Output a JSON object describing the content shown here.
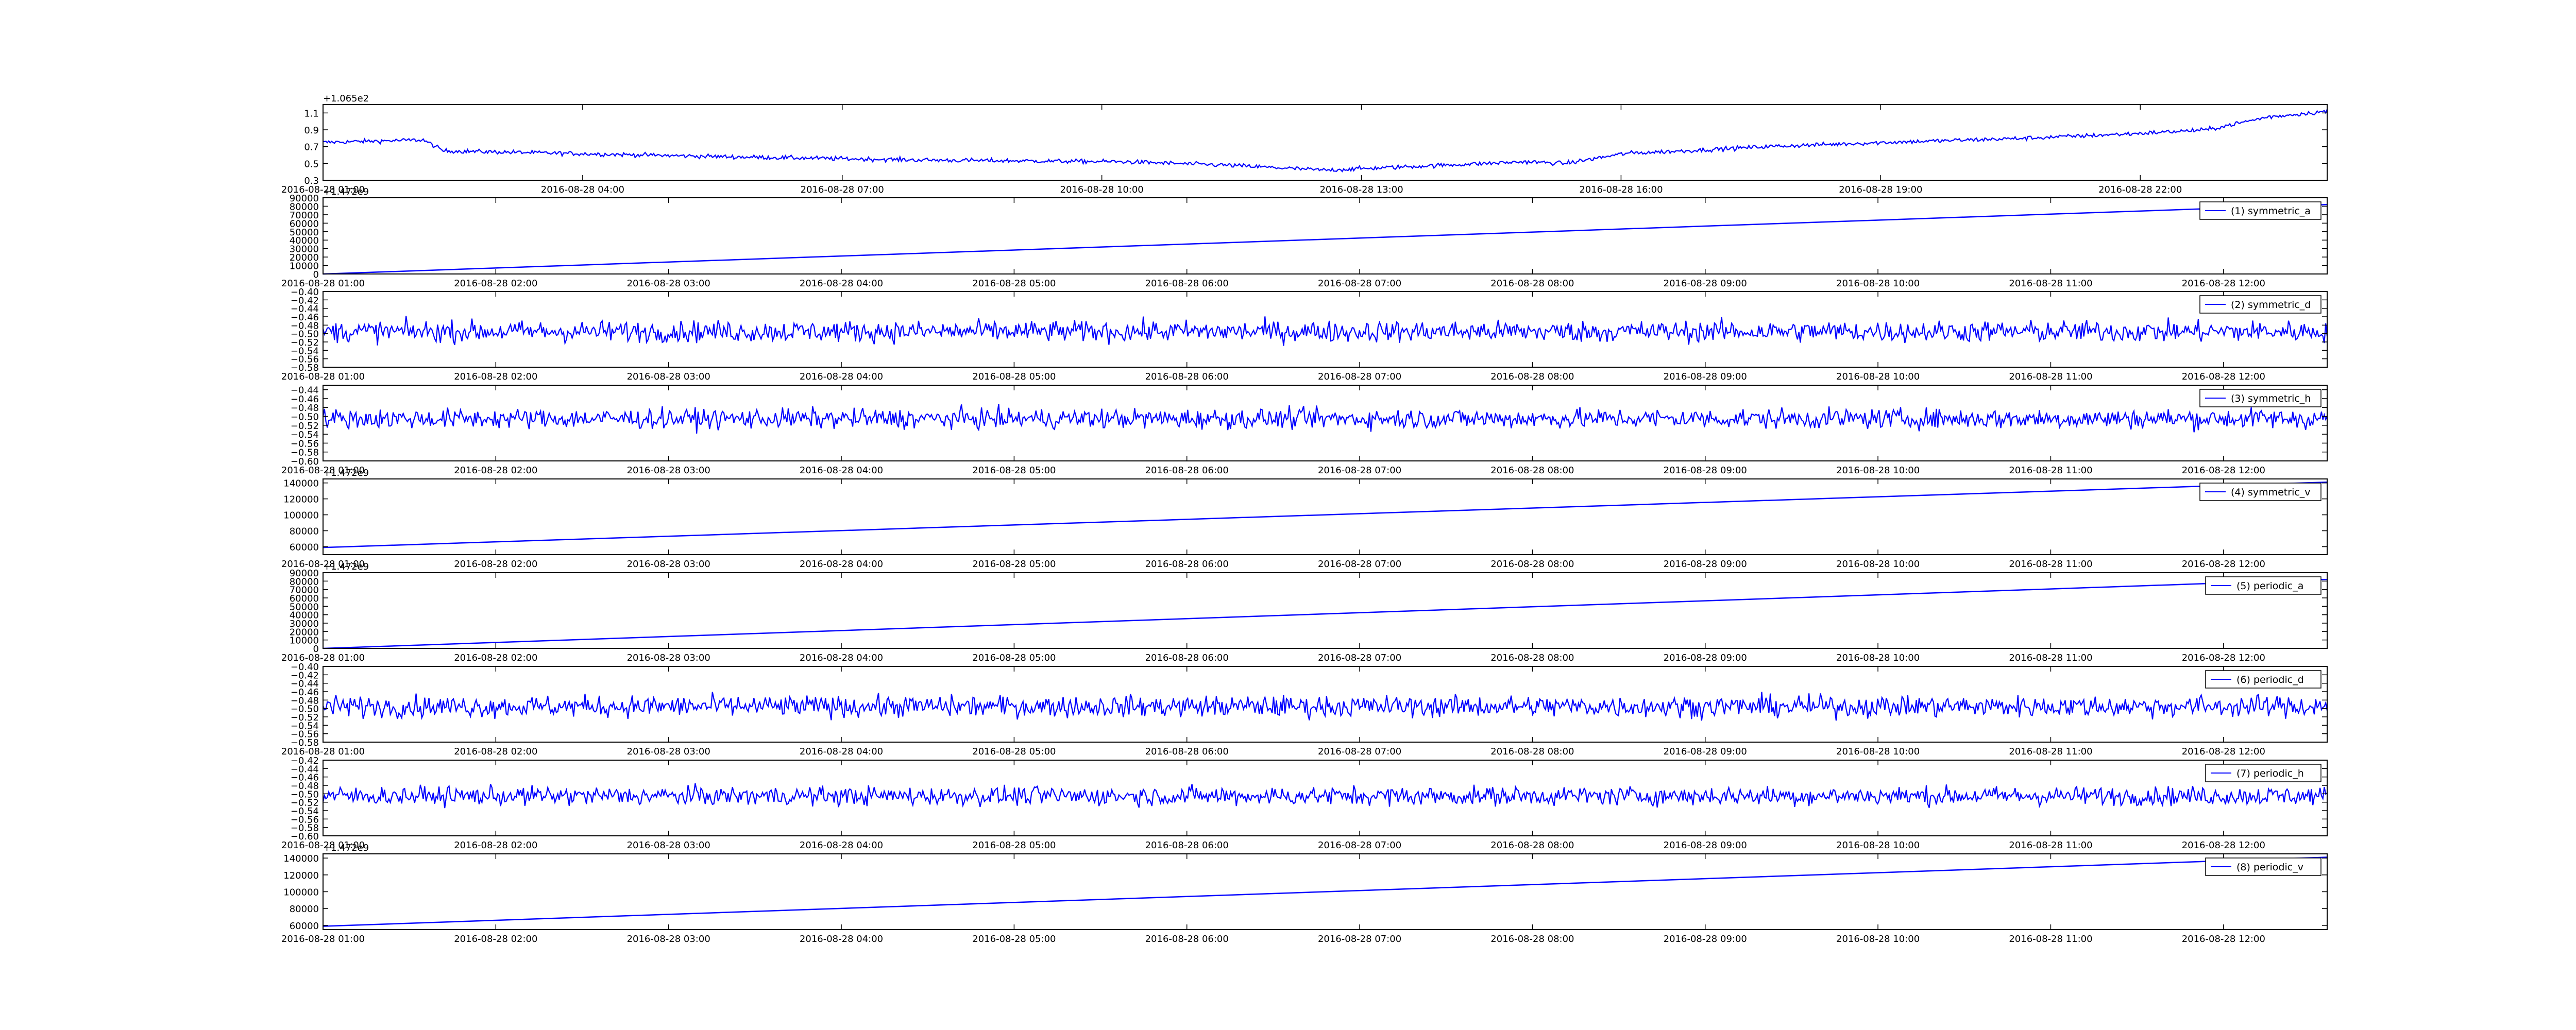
{
  "chart_data": [
    {
      "type": "line",
      "title": "",
      "offset_label": "+1.065e2",
      "x_tick_labels": [
        "2016-08-28 01:00",
        "2016-08-28 04:00",
        "2016-08-28 07:00",
        "2016-08-28 10:00",
        "2016-08-28 13:00",
        "2016-08-28 16:00",
        "2016-08-28 19:00",
        "2016-08-28 22:00"
      ],
      "y_tick_labels": [
        "0.3",
        "0.5",
        "0.7",
        "0.9",
        "1.1"
      ],
      "ylim": [
        0.3,
        1.2
      ],
      "series": [
        {
          "color": "#0000ff",
          "trend_x": [
            0,
            0.05,
            0.06,
            0.1,
            0.2,
            0.3,
            0.4,
            0.45,
            0.5,
            0.55,
            0.6,
            0.62,
            0.65,
            0.68,
            0.72,
            0.78,
            0.85,
            0.9,
            0.94,
            0.97,
            1.0
          ],
          "trend_y": [
            0.75,
            0.78,
            0.65,
            0.63,
            0.58,
            0.54,
            0.52,
            0.48,
            0.42,
            0.47,
            0.52,
            0.5,
            0.62,
            0.65,
            0.7,
            0.75,
            0.8,
            0.85,
            0.9,
            1.05,
            1.12
          ],
          "noise": 0.025
        }
      ],
      "legend": null
    },
    {
      "type": "line",
      "offset_label": "+1.472e9",
      "x_tick_labels": [
        "2016-08-28 01:00",
        "2016-08-28 02:00",
        "2016-08-28 03:00",
        "2016-08-28 04:00",
        "2016-08-28 05:00",
        "2016-08-28 06:00",
        "2016-08-28 07:00",
        "2016-08-28 08:00",
        "2016-08-28 09:00",
        "2016-08-28 10:00",
        "2016-08-28 11:00",
        "2016-08-28 12:00"
      ],
      "y_tick_labels": [
        "0",
        "10000",
        "20000",
        "30000",
        "40000",
        "50000",
        "60000",
        "70000",
        "80000",
        "90000"
      ],
      "ylim": [
        0,
        90000
      ],
      "series": [
        {
          "name": "(1) symmetric_a",
          "color": "#0000ff",
          "start": 0,
          "end": 82000
        }
      ],
      "legend": "top-right"
    },
    {
      "type": "line",
      "x_tick_labels": [
        "2016-08-28 01:00",
        "2016-08-28 02:00",
        "2016-08-28 03:00",
        "2016-08-28 04:00",
        "2016-08-28 05:00",
        "2016-08-28 06:00",
        "2016-08-28 07:00",
        "2016-08-28 08:00",
        "2016-08-28 09:00",
        "2016-08-28 10:00",
        "2016-08-28 11:00",
        "2016-08-28 12:00"
      ],
      "y_tick_labels": [
        "−0.58",
        "−0.56",
        "−0.54",
        "−0.52",
        "−0.50",
        "−0.48",
        "−0.46",
        "−0.44",
        "−0.42",
        "−0.40"
      ],
      "ylim": [
        -0.58,
        -0.4
      ],
      "series": [
        {
          "name": "(2) symmetric_d",
          "color": "#0000ff",
          "mean": -0.495,
          "noise": 0.025
        }
      ],
      "legend": "top-right"
    },
    {
      "type": "line",
      "x_tick_labels": [
        "2016-08-28 01:00",
        "2016-08-28 02:00",
        "2016-08-28 03:00",
        "2016-08-28 04:00",
        "2016-08-28 05:00",
        "2016-08-28 06:00",
        "2016-08-28 07:00",
        "2016-08-28 08:00",
        "2016-08-28 09:00",
        "2016-08-28 10:00",
        "2016-08-28 11:00",
        "2016-08-28 12:00"
      ],
      "y_tick_labels": [
        "−0.60",
        "−0.58",
        "−0.56",
        "−0.54",
        "−0.52",
        "−0.50",
        "−0.48",
        "−0.46",
        "−0.44"
      ],
      "ylim": [
        -0.6,
        -0.43
      ],
      "series": [
        {
          "name": "(3) symmetric_h",
          "color": "#0000ff",
          "mean": -0.505,
          "noise": 0.022
        }
      ],
      "legend": "top-right"
    },
    {
      "type": "line",
      "offset_label": "+1.472e9",
      "x_tick_labels": [
        "2016-08-28 01:00",
        "2016-08-28 02:00",
        "2016-08-28 03:00",
        "2016-08-28 04:00",
        "2016-08-28 05:00",
        "2016-08-28 06:00",
        "2016-08-28 07:00",
        "2016-08-28 08:00",
        "2016-08-28 09:00",
        "2016-08-28 10:00",
        "2016-08-28 11:00",
        "2016-08-28 12:00"
      ],
      "y_tick_labels": [
        "60000",
        "80000",
        "100000",
        "120000",
        "140000"
      ],
      "ylim": [
        50000,
        145000
      ],
      "series": [
        {
          "name": "(4) symmetric_v",
          "color": "#0000ff",
          "start": 59000,
          "end": 141000
        }
      ],
      "legend": "top-right"
    },
    {
      "type": "line",
      "offset_label": "+1.472e9",
      "x_tick_labels": [
        "2016-08-28 01:00",
        "2016-08-28 02:00",
        "2016-08-28 03:00",
        "2016-08-28 04:00",
        "2016-08-28 05:00",
        "2016-08-28 06:00",
        "2016-08-28 07:00",
        "2016-08-28 08:00",
        "2016-08-28 09:00",
        "2016-08-28 10:00",
        "2016-08-28 11:00",
        "2016-08-28 12:00"
      ],
      "y_tick_labels": [
        "0",
        "10000",
        "20000",
        "30000",
        "40000",
        "50000",
        "60000",
        "70000",
        "80000",
        "90000"
      ],
      "ylim": [
        0,
        90000
      ],
      "series": [
        {
          "name": "(5) periodic_a",
          "color": "#0000ff",
          "start": 0,
          "end": 82000
        }
      ],
      "legend": "top-right"
    },
    {
      "type": "line",
      "x_tick_labels": [
        "2016-08-28 01:00",
        "2016-08-28 02:00",
        "2016-08-28 03:00",
        "2016-08-28 04:00",
        "2016-08-28 05:00",
        "2016-08-28 06:00",
        "2016-08-28 07:00",
        "2016-08-28 08:00",
        "2016-08-28 09:00",
        "2016-08-28 10:00",
        "2016-08-28 11:00",
        "2016-08-28 12:00"
      ],
      "y_tick_labels": [
        "−0.58",
        "−0.56",
        "−0.54",
        "−0.52",
        "−0.50",
        "−0.48",
        "−0.46",
        "−0.44",
        "−0.42",
        "−0.40"
      ],
      "ylim": [
        -0.58,
        -0.4
      ],
      "series": [
        {
          "name": "(6) periodic_d",
          "color": "#0000ff",
          "mean": -0.495,
          "noise": 0.025
        }
      ],
      "legend": "top-right"
    },
    {
      "type": "line",
      "x_tick_labels": [
        "2016-08-28 01:00",
        "2016-08-28 02:00",
        "2016-08-28 03:00",
        "2016-08-28 04:00",
        "2016-08-28 05:00",
        "2016-08-28 06:00",
        "2016-08-28 07:00",
        "2016-08-28 08:00",
        "2016-08-28 09:00",
        "2016-08-28 10:00",
        "2016-08-28 11:00",
        "2016-08-28 12:00"
      ],
      "y_tick_labels": [
        "−0.60",
        "−0.58",
        "−0.56",
        "−0.54",
        "−0.52",
        "−0.50",
        "−0.48",
        "−0.46",
        "−0.44",
        "−0.42"
      ],
      "ylim": [
        -0.6,
        -0.42
      ],
      "series": [
        {
          "name": "(7) periodic_h",
          "color": "#0000ff",
          "mean": -0.505,
          "noise": 0.022
        }
      ],
      "legend": "top-right"
    },
    {
      "type": "line",
      "offset_label": "+1.472e9",
      "x_tick_labels": [
        "2016-08-28 01:00",
        "2016-08-28 02:00",
        "2016-08-28 03:00",
        "2016-08-28 04:00",
        "2016-08-28 05:00",
        "2016-08-28 06:00",
        "2016-08-28 07:00",
        "2016-08-28 08:00",
        "2016-08-28 09:00",
        "2016-08-28 10:00",
        "2016-08-28 11:00",
        "2016-08-28 12:00"
      ],
      "y_tick_labels": [
        "60000",
        "80000",
        "100000",
        "120000",
        "140000"
      ],
      "ylim": [
        55000,
        145000
      ],
      "series": [
        {
          "name": "(8) periodic_v",
          "color": "#0000ff",
          "start": 59000,
          "end": 141000
        }
      ],
      "legend": "top-right"
    }
  ]
}
